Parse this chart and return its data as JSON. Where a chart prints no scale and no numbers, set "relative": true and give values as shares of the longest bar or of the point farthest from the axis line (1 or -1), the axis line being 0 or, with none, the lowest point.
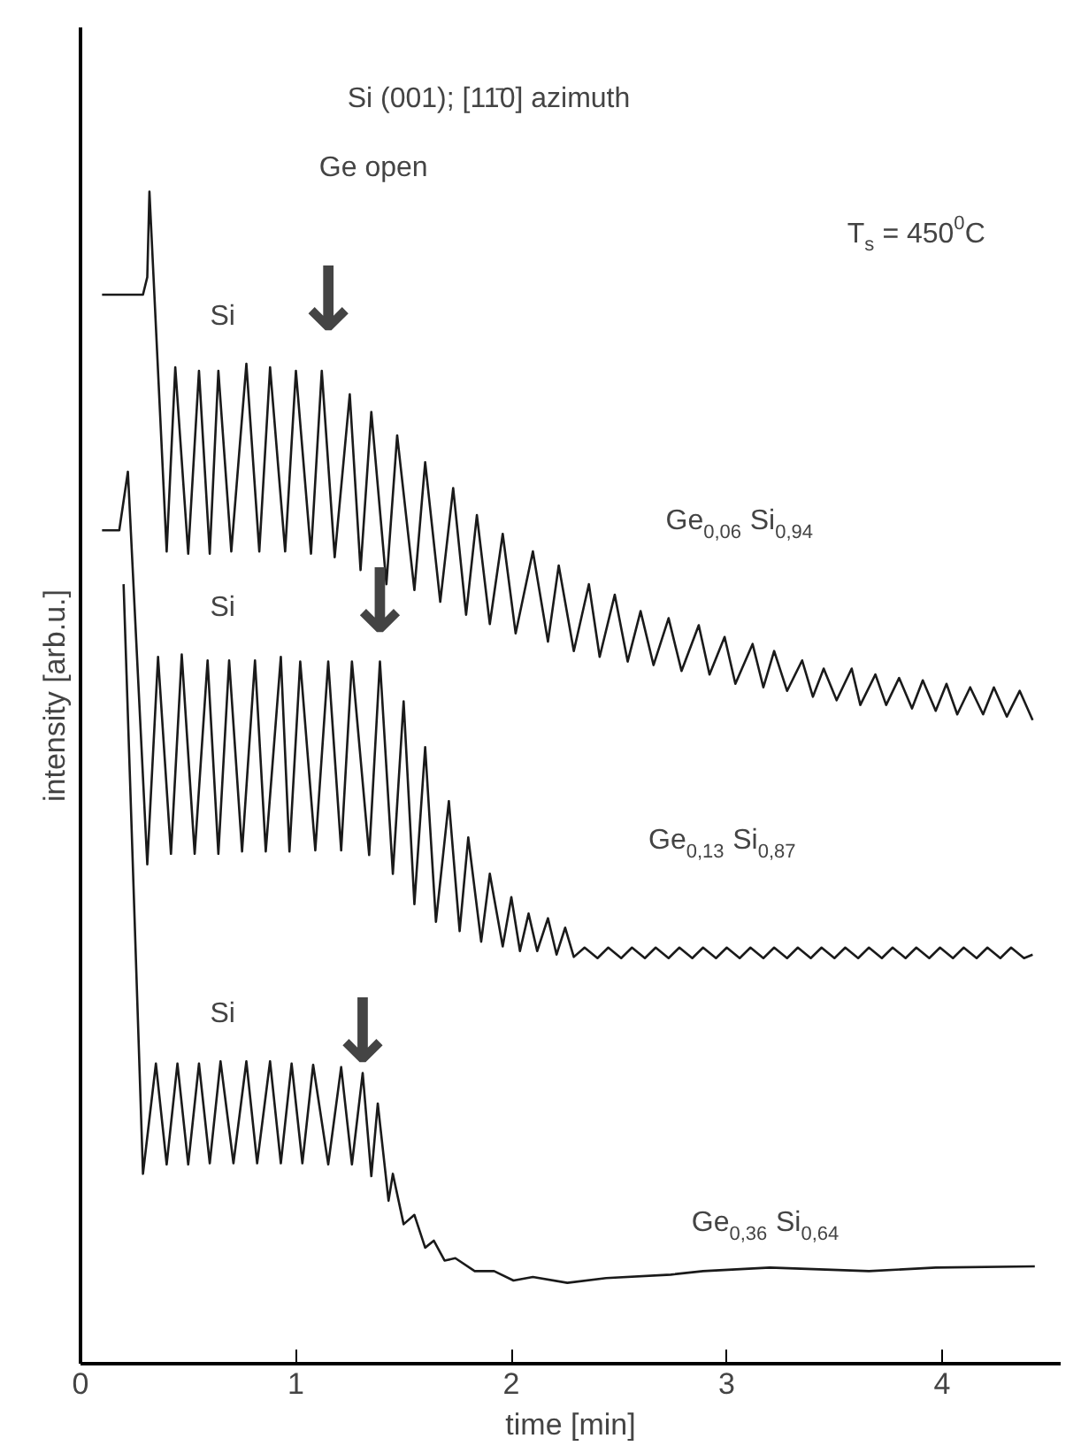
{
  "chart_data": {
    "type": "line",
    "title": "Si (001); [11̄0] azimuth",
    "xlabel": "time [min]",
    "ylabel": "intensity [arb.u.]",
    "relative": true,
    "xlim": [
      0,
      4.55
    ],
    "xticks": [
      0,
      1,
      2,
      3,
      4
    ],
    "series": [
      {
        "name": "Ge$_{0,06}$ Si$_{0,94}$",
        "color": "#1a1a1a",
        "x": [
          0.1,
          0.29,
          0.31,
          0.32,
          0.4,
          0.44,
          0.5,
          0.55,
          0.6,
          0.64,
          0.7,
          0.77,
          0.83,
          0.88,
          0.95,
          1.0,
          1.07,
          1.12,
          1.18,
          1.25,
          1.3,
          1.35,
          1.42,
          1.47,
          1.55,
          1.6,
          1.67,
          1.73,
          1.79,
          1.84,
          1.9,
          1.96,
          2.02,
          2.1,
          2.17,
          2.22,
          2.29,
          2.36,
          2.41,
          2.48,
          2.54,
          2.6,
          2.66,
          2.73,
          2.79,
          2.87,
          2.92,
          2.99,
          3.04,
          3.12,
          3.17,
          3.22,
          3.28,
          3.35,
          3.4,
          3.45,
          3.51,
          3.58,
          3.62,
          3.69,
          3.74,
          3.8,
          3.86,
          3.91,
          3.97,
          4.02,
          4.07,
          4.13,
          4.19,
          4.24,
          4.3,
          4.36,
          4.42
        ],
        "values": [
          0.912,
          0.912,
          0.927,
          1.0,
          0.693,
          0.85,
          0.691,
          0.847,
          0.691,
          0.847,
          0.693,
          0.853,
          0.693,
          0.85,
          0.693,
          0.847,
          0.691,
          0.847,
          0.688,
          0.827,
          0.677,
          0.812,
          0.665,
          0.792,
          0.66,
          0.769,
          0.65,
          0.747,
          0.639,
          0.724,
          0.631,
          0.708,
          0.623,
          0.693,
          0.616,
          0.681,
          0.608,
          0.665,
          0.603,
          0.656,
          0.599,
          0.642,
          0.596,
          0.636,
          0.591,
          0.63,
          0.588,
          0.62,
          0.58,
          0.614,
          0.577,
          0.608,
          0.574,
          0.6,
          0.569,
          0.593,
          0.566,
          0.593,
          0.562,
          0.588,
          0.562,
          0.585,
          0.559,
          0.583,
          0.557,
          0.58,
          0.554,
          0.577,
          0.554,
          0.577,
          0.552,
          0.574,
          0.549
        ]
      },
      {
        "name": "Ge$_{0,13}$ Si$_{0,87}$",
        "color": "#1a1a1a",
        "x": [
          0.1,
          0.18,
          0.22,
          0.31,
          0.36,
          0.42,
          0.47,
          0.53,
          0.59,
          0.64,
          0.69,
          0.75,
          0.81,
          0.86,
          0.93,
          0.97,
          1.02,
          1.09,
          1.15,
          1.21,
          1.26,
          1.34,
          1.39,
          1.45,
          1.5,
          1.55,
          1.6,
          1.65,
          1.71,
          1.76,
          1.8,
          1.86,
          1.9,
          1.96,
          2.0,
          2.04,
          2.08,
          2.12,
          2.17,
          2.21,
          2.25,
          2.29,
          2.34,
          2.4,
          2.45,
          2.51,
          2.56,
          2.62,
          2.67,
          2.73,
          2.78,
          2.84,
          2.89,
          2.95,
          3.0,
          3.06,
          3.11,
          3.17,
          3.22,
          3.28,
          3.33,
          3.39,
          3.44,
          3.5,
          3.55,
          3.61,
          3.66,
          3.72,
          3.77,
          3.83,
          3.88,
          3.94,
          3.99,
          4.05,
          4.1,
          4.16,
          4.21,
          4.27,
          4.32,
          4.38,
          4.42
        ],
        "values": [
          0.711,
          0.711,
          0.761,
          0.426,
          0.603,
          0.435,
          0.605,
          0.435,
          0.6,
          0.435,
          0.6,
          0.437,
          0.6,
          0.437,
          0.603,
          0.437,
          0.599,
          0.438,
          0.599,
          0.438,
          0.599,
          0.434,
          0.599,
          0.418,
          0.565,
          0.392,
          0.526,
          0.377,
          0.48,
          0.369,
          0.449,
          0.36,
          0.418,
          0.356,
          0.398,
          0.352,
          0.384,
          0.352,
          0.38,
          0.349,
          0.372,
          0.347,
          0.355,
          0.346,
          0.355,
          0.346,
          0.355,
          0.346,
          0.355,
          0.346,
          0.355,
          0.346,
          0.355,
          0.346,
          0.355,
          0.346,
          0.355,
          0.346,
          0.355,
          0.346,
          0.355,
          0.346,
          0.355,
          0.346,
          0.355,
          0.346,
          0.355,
          0.346,
          0.355,
          0.346,
          0.355,
          0.346,
          0.355,
          0.346,
          0.355,
          0.346,
          0.355,
          0.346,
          0.355,
          0.346,
          0.349
        ]
      },
      {
        "name": "Ge$_{0,36}$ Si$_{0,64}$",
        "color": "#1a1a1a",
        "x": [
          0.2,
          0.29,
          0.35,
          0.4,
          0.45,
          0.5,
          0.55,
          0.6,
          0.65,
          0.71,
          0.77,
          0.82,
          0.88,
          0.93,
          0.98,
          1.03,
          1.08,
          1.15,
          1.21,
          1.26,
          1.31,
          1.35,
          1.38,
          1.43,
          1.45,
          1.5,
          1.55,
          1.6,
          1.64,
          1.69,
          1.74,
          1.83,
          1.92,
          2.01,
          2.1,
          2.26,
          2.44,
          2.74,
          2.89,
          3.2,
          3.66,
          3.97,
          4.43
        ],
        "values": [
          0.665,
          0.162,
          0.256,
          0.17,
          0.256,
          0.17,
          0.256,
          0.171,
          0.258,
          0.171,
          0.258,
          0.171,
          0.258,
          0.171,
          0.256,
          0.171,
          0.255,
          0.17,
          0.253,
          0.17,
          0.248,
          0.16,
          0.222,
          0.139,
          0.162,
          0.119,
          0.127,
          0.099,
          0.105,
          0.088,
          0.09,
          0.079,
          0.079,
          0.071,
          0.074,
          0.069,
          0.073,
          0.076,
          0.079,
          0.082,
          0.079,
          0.082,
          0.083
        ]
      }
    ],
    "annotations": [
      "T$_{s}$ = 450$^{0}$C",
      "Ge open",
      "↓",
      "↓",
      "↓",
      "Si",
      "Si",
      "Si"
    ]
  }
}
